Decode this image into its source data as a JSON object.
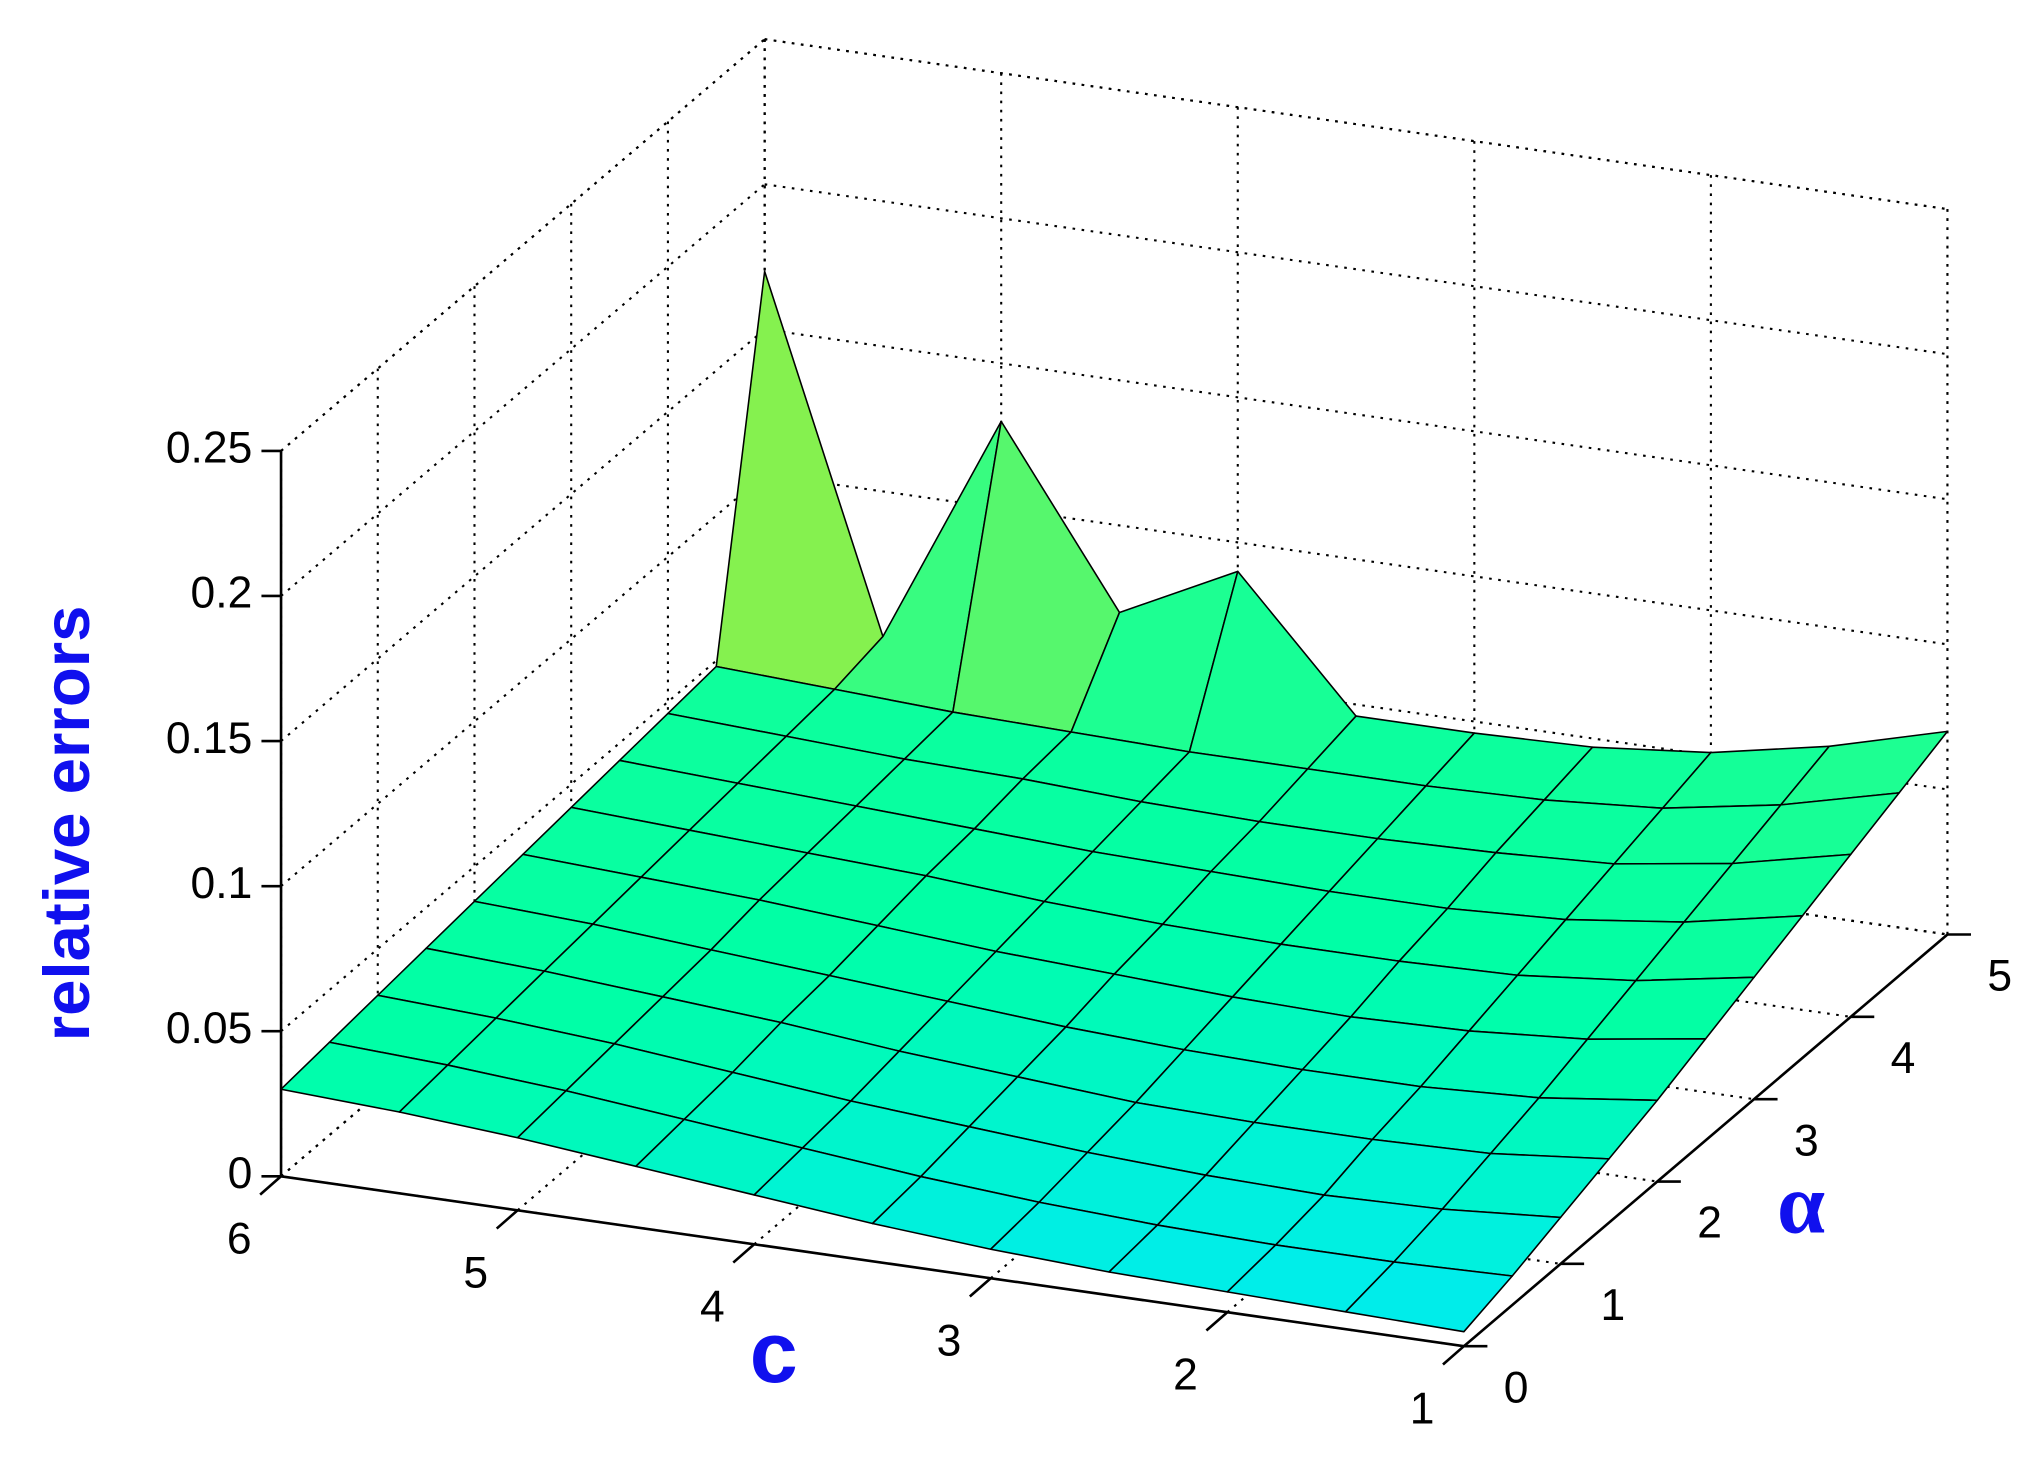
{
  "chart_data": {
    "type": "surface",
    "xlabel": "c",
    "ylabel": "α",
    "zlabel": "relative errors",
    "x": [
      6,
      5.5,
      5,
      4.5,
      4,
      3.5,
      3,
      2.5,
      2,
      1.5,
      1
    ],
    "y": [
      0,
      0.5,
      1,
      1.5,
      2,
      2.5,
      3,
      3.5,
      4,
      4.5,
      5
    ],
    "z": [
      [
        0.03,
        0.028,
        0.025,
        0.021,
        0.017,
        0.013,
        0.01,
        0.008,
        0.007,
        0.006,
        0.005
      ],
      [
        0.032,
        0.03,
        0.027,
        0.023,
        0.019,
        0.015,
        0.012,
        0.01,
        0.009,
        0.009,
        0.01
      ],
      [
        0.034,
        0.032,
        0.029,
        0.025,
        0.021,
        0.018,
        0.015,
        0.013,
        0.012,
        0.013,
        0.016
      ],
      [
        0.036,
        0.034,
        0.031,
        0.028,
        0.024,
        0.021,
        0.018,
        0.017,
        0.017,
        0.018,
        0.022
      ],
      [
        0.038,
        0.036,
        0.033,
        0.03,
        0.027,
        0.024,
        0.022,
        0.021,
        0.021,
        0.023,
        0.028
      ],
      [
        0.04,
        0.038,
        0.036,
        0.033,
        0.03,
        0.028,
        0.026,
        0.025,
        0.026,
        0.029,
        0.035
      ],
      [
        0.042,
        0.04,
        0.038,
        0.036,
        0.033,
        0.031,
        0.03,
        0.03,
        0.031,
        0.035,
        0.042
      ],
      [
        0.044,
        0.042,
        0.04,
        0.038,
        0.036,
        0.035,
        0.034,
        0.034,
        0.036,
        0.041,
        0.049
      ],
      [
        0.046,
        0.044,
        0.042,
        0.041,
        0.039,
        0.038,
        0.038,
        0.039,
        0.041,
        0.047,
        0.056
      ],
      [
        0.048,
        0.046,
        0.044,
        0.043,
        0.042,
        0.042,
        0.042,
        0.043,
        0.046,
        0.053,
        0.063
      ],
      [
        0.17,
        0.05,
        0.13,
        0.07,
        0.09,
        0.046,
        0.046,
        0.047,
        0.051,
        0.059,
        0.07
      ]
    ],
    "xlim": [
      1,
      6
    ],
    "ylim": [
      0,
      5
    ],
    "zlim": [
      0,
      0.25
    ],
    "xticks": [
      1,
      2,
      3,
      4,
      5,
      6
    ],
    "yticks": [
      0,
      1,
      2,
      3,
      4,
      5
    ],
    "zticks": [
      0,
      0.05,
      0.1,
      0.15,
      0.2,
      0.25
    ],
    "grid": true,
    "colormap": [
      "#00e8ff",
      "#00ffa6",
      "#20ff90",
      "#ffe000",
      "#ff9000",
      "#ff3000"
    ],
    "caxis": [
      0,
      0.16
    ],
    "edge_color": "#000000"
  }
}
